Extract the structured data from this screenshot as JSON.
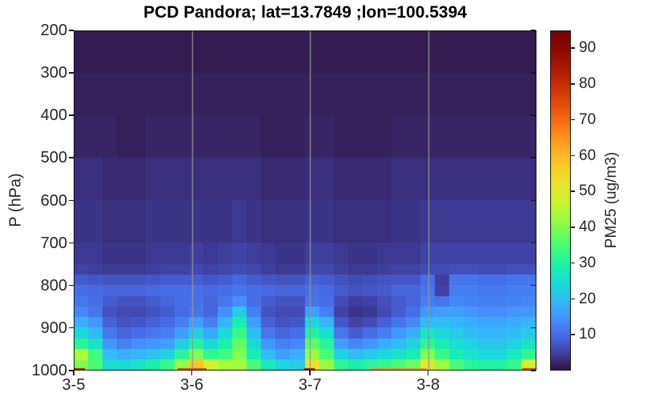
{
  "figure": {
    "title": "PCD Pandora; lat=13.7849 ;lon=100.5394",
    "y_axis_label": "P (hPa)",
    "colorbar_label": "PM25 (ug/m3)"
  },
  "chart_data": {
    "type": "heatmap",
    "title": "PCD Pandora; lat=13.7849 ;lon=100.5394",
    "xlabel": "",
    "ylabel": "P (hPa)",
    "x_axis": {
      "total_hours": 94,
      "tick_labels": [
        {
          "hour": 0,
          "label": "3-5"
        },
        {
          "hour": 24,
          "label": "3-6"
        },
        {
          "hour": 48,
          "label": "3-7"
        },
        {
          "hour": 72,
          "label": "3-8"
        }
      ],
      "gridline_hours": [
        24,
        48,
        72
      ],
      "gridline_color": "#969696"
    },
    "y_axis": {
      "label": "P (hPa)",
      "ticks": [
        200,
        300,
        400,
        500,
        600,
        700,
        800,
        900,
        1000
      ],
      "ylim": [
        200,
        1000
      ],
      "direction": "pressure-increasing-downward"
    },
    "colormap": "turbo",
    "vmin": 0,
    "vmax": 95,
    "colorbar": {
      "label": "PM25 (ug/m3)",
      "ticks": [
        10,
        20,
        30,
        40,
        50,
        60,
        70,
        80,
        90
      ]
    },
    "grid": {
      "time_step_hours": 2.9375,
      "columns": 32,
      "levels": [
        {
          "p_top": 200,
          "p_bottom": 300,
          "values": [
            1,
            1,
            1,
            1,
            1,
            1,
            1,
            1,
            1,
            1,
            1,
            1,
            1,
            1,
            1,
            1,
            1,
            1,
            1,
            1,
            1,
            1,
            1,
            1,
            1,
            1,
            1,
            1,
            1,
            1,
            1,
            1
          ]
        },
        {
          "p_top": 300,
          "p_bottom": 400,
          "values": [
            1.5,
            1.5,
            1.5,
            1.5,
            1.5,
            1.5,
            1.5,
            1.5,
            1.5,
            1.5,
            1.5,
            1.5,
            1.5,
            1.5,
            1.5,
            1.5,
            1.5,
            1.5,
            1.5,
            1.5,
            1.5,
            1.5,
            1.5,
            1.5,
            1.5,
            1.5,
            1.5,
            1.5,
            1.5,
            1.5,
            1.5,
            1.5
          ]
        },
        {
          "p_top": 400,
          "p_bottom": 500,
          "values": [
            2,
            2,
            2,
            1.5,
            1.5,
            2,
            2,
            2,
            2,
            2,
            2,
            2,
            2,
            1.5,
            1.5,
            1.5,
            2,
            2,
            1.5,
            1.5,
            1.5,
            1.5,
            2,
            2,
            2,
            2,
            2,
            2,
            2,
            2,
            2,
            2
          ]
        },
        {
          "p_top": 500,
          "p_bottom": 600,
          "values": [
            3,
            3,
            2.5,
            2.5,
            2.5,
            3,
            3,
            3,
            3,
            3,
            3,
            3,
            3,
            2.5,
            2.5,
            2.5,
            3,
            3,
            2.5,
            2.5,
            2.5,
            2.5,
            3,
            3,
            3,
            3,
            3,
            3,
            3,
            3,
            3,
            3
          ]
        },
        {
          "p_top": 600,
          "p_bottom": 700,
          "values": [
            3.5,
            3.5,
            3,
            3,
            3,
            3.5,
            3.5,
            3.5,
            3.5,
            3.5,
            3.5,
            4,
            3.5,
            3,
            3,
            3,
            3.5,
            3.5,
            3,
            3,
            3,
            3,
            3.5,
            3.5,
            4,
            4,
            4,
            4,
            4,
            4,
            4,
            4
          ]
        },
        {
          "p_top": 700,
          "p_bottom": 750,
          "values": [
            4,
            4,
            3.5,
            3.5,
            3.5,
            4,
            4,
            4,
            4.5,
            4,
            4.5,
            5,
            4.5,
            4,
            3.5,
            3.5,
            4.5,
            4.5,
            4,
            3.5,
            3.5,
            4,
            4,
            4,
            5,
            5,
            5,
            5,
            5,
            5,
            5,
            5
          ]
        },
        {
          "p_top": 750,
          "p_bottom": 775,
          "values": [
            5,
            4.5,
            4,
            4,
            4,
            4.5,
            5,
            5,
            5.5,
            5,
            5.5,
            6,
            5.5,
            4.5,
            4,
            4,
            5.5,
            5.5,
            4.5,
            4,
            4,
            4.5,
            5,
            5,
            6,
            6,
            6.5,
            6.5,
            6,
            6,
            6.5,
            6.5
          ]
        },
        {
          "p_top": 775,
          "p_bottom": 800,
          "values": [
            8,
            7.5,
            7,
            7,
            7,
            7.5,
            8,
            8,
            8,
            7.5,
            8,
            9,
            8,
            7.5,
            7,
            7,
            8.5,
            8,
            7,
            6,
            6.5,
            7,
            7.5,
            7.5,
            10,
            4.5,
            11,
            11,
            10.5,
            10.5,
            11,
            11
          ]
        },
        {
          "p_top": 800,
          "p_bottom": 825,
          "values": [
            10,
            9.5,
            9,
            9,
            9,
            9.5,
            10,
            10,
            10,
            9.5,
            10,
            11,
            10,
            9.5,
            9,
            9,
            10,
            9.5,
            8,
            7,
            7.5,
            8,
            9,
            9,
            11,
            5,
            12,
            12,
            11.5,
            11.5,
            12,
            12
          ]
        },
        {
          "p_top": 825,
          "p_bottom": 850,
          "values": [
            11,
            10,
            8,
            7,
            7,
            8,
            9,
            10,
            10.5,
            9,
            11,
            14,
            10,
            8,
            7,
            7,
            11,
            10,
            6,
            4.5,
            5,
            6.5,
            8,
            9,
            12,
            11,
            13,
            12.5,
            12,
            12,
            12.5,
            13
          ]
        },
        {
          "p_top": 850,
          "p_bottom": 875,
          "values": [
            13,
            11,
            7,
            6,
            6,
            7,
            8,
            9.5,
            11,
            9,
            14,
            22,
            12,
            7,
            6,
            6,
            16,
            12,
            5,
            3.5,
            4,
            6,
            8,
            10,
            15,
            16,
            16,
            15,
            14,
            14,
            15,
            15
          ]
        },
        {
          "p_top": 875,
          "p_bottom": 900,
          "values": [
            18,
            15,
            8.5,
            7,
            7.5,
            8.5,
            9.5,
            12,
            16,
            12,
            19,
            28,
            16,
            8.5,
            7,
            7.5,
            24,
            19,
            7.5,
            5,
            6,
            8.5,
            11,
            13,
            20,
            20,
            19,
            18,
            17,
            17,
            18,
            19
          ]
        },
        {
          "p_top": 900,
          "p_bottom": 925,
          "values": [
            24,
            20,
            11,
            9,
            10,
            11,
            12,
            16,
            22,
            17,
            24,
            33,
            20,
            11,
            9,
            10,
            30,
            25,
            11,
            8,
            10,
            12,
            15,
            18,
            26,
            24,
            22,
            20,
            19,
            19,
            20,
            22
          ]
        },
        {
          "p_top": 925,
          "p_bottom": 950,
          "values": [
            31,
            26,
            15,
            12,
            14,
            15,
            16,
            22,
            30,
            24,
            29,
            37,
            24,
            15,
            12,
            13,
            37,
            31,
            16,
            13,
            15,
            18,
            20,
            23,
            32,
            28,
            25,
            23,
            21,
            21,
            23,
            26
          ]
        },
        {
          "p_top": 950,
          "p_bottom": 975,
          "values": [
            44,
            34,
            20,
            18,
            19,
            21,
            23,
            31,
            40,
            32,
            34,
            40,
            28,
            20,
            16,
            18,
            42,
            35,
            23,
            20,
            22,
            24,
            26,
            28,
            40,
            33,
            28,
            26,
            24,
            24,
            27,
            32
          ]
        },
        {
          "p_top": 975,
          "p_bottom": 1000,
          "values": [
            40,
            35,
            25,
            24,
            26,
            29,
            33,
            42,
            58,
            48,
            43,
            43,
            35,
            27,
            23,
            22,
            53,
            42,
            32,
            29,
            31,
            33,
            35,
            38,
            50,
            42,
            35,
            31,
            30,
            30,
            33,
            48
          ]
        }
      ]
    },
    "surface_observations": [
      {
        "from_hour": 0,
        "to_hour": 2.3,
        "value": 85
      },
      {
        "from_hour": 21.1,
        "to_hour": 27.0,
        "value": 75
      },
      {
        "from_hour": 46.8,
        "to_hour": 49.0,
        "value": 85
      },
      {
        "from_hour": 60.2,
        "to_hour": 71.7,
        "value": 65
      },
      {
        "from_hour": 91.1,
        "to_hour": 94.0,
        "value": 78
      }
    ],
    "colors": {
      "axis": "#1a1a1a",
      "tick_text": "#262626",
      "gridline": "#969696",
      "background": "#ffffff"
    }
  }
}
